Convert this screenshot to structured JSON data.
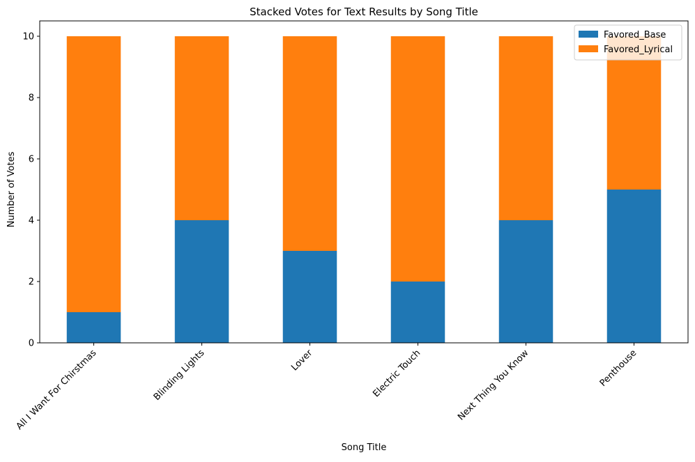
{
  "chart_data": {
    "type": "bar",
    "stacked": true,
    "title": "Stacked Votes for Text Results by Song Title",
    "xlabel": "Song Title",
    "ylabel": "Number of Votes",
    "ylim": [
      0,
      10.5
    ],
    "yticks": [
      0,
      2,
      4,
      6,
      8,
      10
    ],
    "grid": false,
    "legend_position": "top-right",
    "categories": [
      "All I Want For Chirstmas",
      "Blinding Lights",
      "Lover",
      "Electric Touch",
      "Next Thing You Know",
      "Penthouse"
    ],
    "series": [
      {
        "name": "Favored_Base",
        "color": "#1f77b4",
        "values": [
          1,
          4,
          3,
          2,
          4,
          5
        ]
      },
      {
        "name": "Favored_Lyrical",
        "color": "#ff7f0e",
        "values": [
          9,
          6,
          7,
          8,
          6,
          5
        ]
      }
    ]
  }
}
